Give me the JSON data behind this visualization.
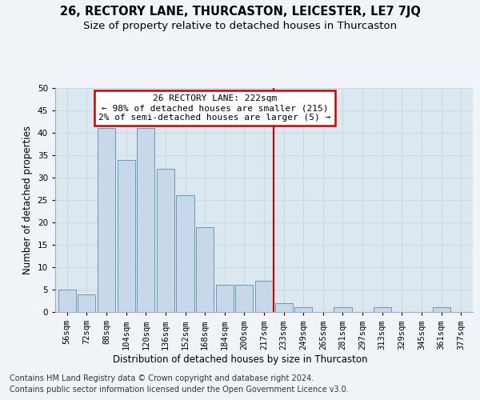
{
  "title": "26, RECTORY LANE, THURCASTON, LEICESTER, LE7 7JQ",
  "subtitle": "Size of property relative to detached houses in Thurcaston",
  "xlabel": "Distribution of detached houses by size in Thurcaston",
  "ylabel": "Number of detached properties",
  "categories": [
    "56sqm",
    "72sqm",
    "88sqm",
    "104sqm",
    "120sqm",
    "136sqm",
    "152sqm",
    "168sqm",
    "184sqm",
    "200sqm",
    "217sqm",
    "233sqm",
    "249sqm",
    "265sqm",
    "281sqm",
    "297sqm",
    "313sqm",
    "329sqm",
    "345sqm",
    "361sqm",
    "377sqm"
  ],
  "values": [
    5,
    4,
    41,
    34,
    41,
    32,
    26,
    19,
    6,
    6,
    7,
    2,
    1,
    0,
    1,
    0,
    1,
    0,
    0,
    1,
    0
  ],
  "bar_color": "#c8d8e8",
  "bar_edge_color": "#6699bb",
  "reference_line_index": 10.5,
  "annotation_text": "26 RECTORY LANE: 222sqm\n← 98% of detached houses are smaller (215)\n2% of semi-detached houses are larger (5) →",
  "annotation_box_color": "#ffffff",
  "annotation_box_edge_color": "#cc0000",
  "ylim": [
    0,
    50
  ],
  "yticks": [
    0,
    5,
    10,
    15,
    20,
    25,
    30,
    35,
    40,
    45,
    50
  ],
  "grid_color": "#c8d8e8",
  "background_color": "#dce8f0",
  "fig_background": "#f0f4f8",
  "footer_line1": "Contains HM Land Registry data © Crown copyright and database right 2024.",
  "footer_line2": "Contains public sector information licensed under the Open Government Licence v3.0.",
  "title_fontsize": 10.5,
  "subtitle_fontsize": 9.5,
  "axis_label_fontsize": 8.5,
  "tick_fontsize": 7.5,
  "footer_fontsize": 7.0,
  "annot_fontsize": 8.0
}
